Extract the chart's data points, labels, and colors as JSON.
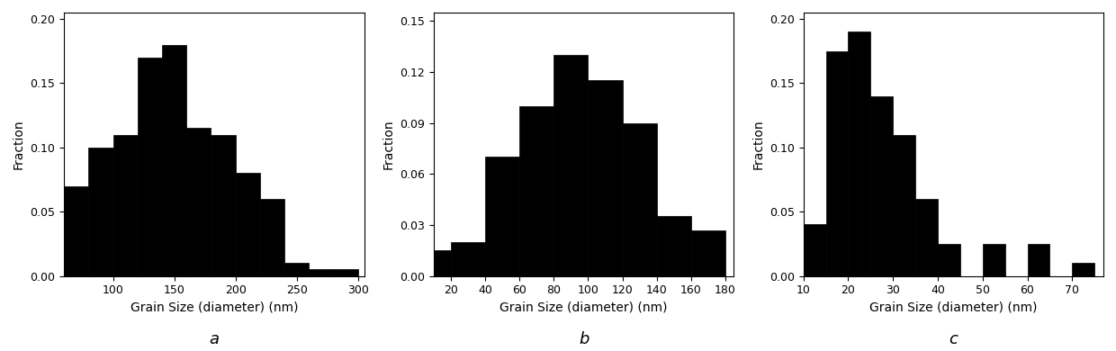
{
  "chart_a": {
    "bin_edges": [
      60,
      80,
      100,
      120,
      140,
      160,
      180,
      200,
      220,
      240,
      260,
      280,
      300
    ],
    "fractions": [
      0.07,
      0.1,
      0.11,
      0.17,
      0.18,
      0.115,
      0.11,
      0.08,
      0.06,
      0.01,
      0.005,
      0.005
    ],
    "xlabel": "Grain Size (diameter) (nm)",
    "ylabel": "Fraction",
    "ylim": [
      0,
      0.205
    ],
    "yticks": [
      0.0,
      0.05,
      0.1,
      0.15,
      0.2
    ],
    "xticks": [
      100,
      150,
      200,
      250,
      300
    ],
    "xlim": [
      60,
      305
    ],
    "label": "a"
  },
  "chart_b": {
    "bin_edges": [
      10,
      20,
      40,
      60,
      80,
      100,
      120,
      140,
      160,
      180
    ],
    "fractions": [
      0.015,
      0.02,
      0.07,
      0.1,
      0.13,
      0.115,
      0.09,
      0.035,
      0.027
    ],
    "xlabel": "Grain Size (diameter) (nm)",
    "ylabel": "Fraction",
    "ylim": [
      0,
      0.155
    ],
    "yticks": [
      0.0,
      0.03,
      0.06,
      0.09,
      0.12,
      0.15
    ],
    "xticks": [
      20,
      40,
      60,
      80,
      100,
      120,
      140,
      160,
      180
    ],
    "xlim": [
      10,
      185
    ],
    "label": "b"
  },
  "chart_c": {
    "bin_edges": [
      10,
      15,
      20,
      25,
      30,
      35,
      40,
      45,
      50,
      55,
      60,
      65,
      70,
      75
    ],
    "fractions": [
      0.04,
      0.175,
      0.19,
      0.14,
      0.11,
      0.06,
      0.025,
      0.0,
      0.025,
      0.0,
      0.025,
      0.0,
      0.01
    ],
    "xlabel": "Grain Size (diameter) (nm)",
    "ylabel": "Fraction",
    "ylim": [
      0,
      0.205
    ],
    "yticks": [
      0.0,
      0.05,
      0.1,
      0.15,
      0.2
    ],
    "xticks": [
      10,
      20,
      30,
      40,
      50,
      60,
      70
    ],
    "xlim": [
      10,
      77
    ],
    "label": "c"
  },
  "bar_color": "#000000",
  "edge_color": "#000000",
  "background_color": "#ffffff",
  "tick_font_size": 9,
  "axis_label_font_size": 10,
  "subplot_label_font_size": 13
}
